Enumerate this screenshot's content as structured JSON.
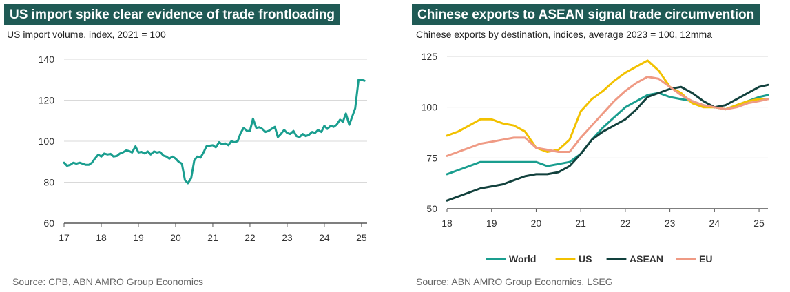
{
  "charts": [
    {
      "title": "US import spike clear evidence of trade frontloading",
      "subtitle": "US import volume, index, 2021 = 100",
      "source": "Source: CPB, ABN AMRO Group Economics"
    },
    {
      "title": "Chinese exports to ASEAN signal trade circumvention",
      "subtitle": "Chinese exports by destination, indices, average 2023 = 100, 12mma",
      "source": "Source: ABN AMRO Group Economics, LSEG"
    }
  ],
  "colors": {
    "title_bg": "#1f5a55",
    "world": "#1a9e8f",
    "us": "#f2c100",
    "asean": "#12413d",
    "eu": "#ef9a84",
    "axis": "#555555",
    "grid": "#d9d9d9"
  },
  "chart_data": [
    {
      "type": "line",
      "title": "US import spike clear evidence of trade frontloading",
      "xlabel": "",
      "ylabel": "US import volume, index, 2021 = 100",
      "xlim": [
        2017,
        2025.15
      ],
      "ylim": [
        60,
        140
      ],
      "yticks": [
        60,
        80,
        100,
        120,
        140
      ],
      "xticks": [
        2017,
        2018,
        2019,
        2020,
        2021,
        2022,
        2023,
        2024,
        2025
      ],
      "xtick_labels": [
        "17",
        "18",
        "19",
        "20",
        "21",
        "22",
        "23",
        "24",
        "25"
      ],
      "grid": true,
      "series": [
        {
          "name": "US import volume",
          "color": "#1a9e8f",
          "x": [
            2017.0,
            2017.08,
            2017.17,
            2017.25,
            2017.33,
            2017.42,
            2017.5,
            2017.58,
            2017.67,
            2017.75,
            2017.83,
            2017.92,
            2018.0,
            2018.08,
            2018.17,
            2018.25,
            2018.33,
            2018.42,
            2018.5,
            2018.58,
            2018.67,
            2018.75,
            2018.83,
            2018.92,
            2019.0,
            2019.08,
            2019.17,
            2019.25,
            2019.33,
            2019.42,
            2019.5,
            2019.58,
            2019.67,
            2019.75,
            2019.83,
            2019.92,
            2020.0,
            2020.08,
            2020.17,
            2020.25,
            2020.33,
            2020.42,
            2020.5,
            2020.58,
            2020.67,
            2020.75,
            2020.83,
            2020.92,
            2021.0,
            2021.08,
            2021.17,
            2021.25,
            2021.33,
            2021.42,
            2021.5,
            2021.58,
            2021.67,
            2021.75,
            2021.83,
            2021.92,
            2022.0,
            2022.08,
            2022.17,
            2022.25,
            2022.33,
            2022.42,
            2022.5,
            2022.58,
            2022.67,
            2022.75,
            2022.83,
            2022.92,
            2023.0,
            2023.08,
            2023.17,
            2023.25,
            2023.33,
            2023.42,
            2023.5,
            2023.58,
            2023.67,
            2023.75,
            2023.83,
            2023.92,
            2024.0,
            2024.08,
            2024.17,
            2024.25,
            2024.33,
            2024.42,
            2024.5,
            2024.58,
            2024.67,
            2024.75,
            2024.83,
            2024.92,
            2025.0,
            2025.08
          ],
          "y": [
            89.5,
            88.0,
            88.5,
            89.5,
            89.0,
            89.5,
            89.0,
            88.5,
            88.5,
            89.5,
            91.5,
            93.5,
            92.5,
            94.0,
            93.5,
            93.8,
            92.5,
            92.8,
            94.0,
            94.5,
            95.5,
            95.2,
            94.5,
            97.5,
            94.5,
            94.8,
            94.0,
            95.0,
            93.5,
            95.0,
            94.5,
            94.8,
            93.0,
            92.5,
            91.5,
            92.5,
            91.5,
            90.0,
            89.0,
            81.0,
            79.5,
            82.0,
            90.5,
            92.5,
            92.0,
            94.5,
            97.5,
            97.8,
            98.0,
            97.0,
            99.5,
            98.5,
            99.0,
            98.0,
            100.0,
            99.5,
            100.0,
            104.0,
            106.5,
            105.0,
            105.0,
            111.0,
            106.5,
            106.8,
            106.0,
            104.5,
            105.0,
            106.0,
            107.0,
            102.0,
            103.5,
            105.5,
            104.0,
            103.5,
            105.0,
            102.5,
            102.0,
            103.5,
            102.5,
            103.0,
            104.5,
            104.0,
            105.5,
            104.5,
            107.5,
            106.0,
            107.5,
            107.0,
            108.0,
            110.5,
            109.5,
            113.5,
            108.0,
            112.0,
            116.0,
            130.0,
            130.0,
            129.5
          ]
        }
      ]
    },
    {
      "type": "line",
      "title": "Chinese exports to ASEAN signal trade circumvention",
      "xlabel": "",
      "ylabel": "Chinese exports by destination, indices, average 2023 = 100, 12mma",
      "xlim": [
        2018,
        2025.2
      ],
      "ylim": [
        50,
        125
      ],
      "yticks": [
        50,
        75,
        100,
        125
      ],
      "xticks": [
        2018,
        2019,
        2020,
        2021,
        2022,
        2023,
        2024,
        2025
      ],
      "xtick_labels": [
        "18",
        "19",
        "20",
        "21",
        "22",
        "23",
        "24",
        "25"
      ],
      "grid": true,
      "legend": "bottom",
      "series": [
        {
          "name": "World",
          "color": "#1a9e8f",
          "x": [
            2018.0,
            2018.25,
            2018.5,
            2018.75,
            2019.0,
            2019.25,
            2019.5,
            2019.75,
            2020.0,
            2020.25,
            2020.5,
            2020.75,
            2021.0,
            2021.25,
            2021.5,
            2021.75,
            2022.0,
            2022.25,
            2022.5,
            2022.75,
            2023.0,
            2023.25,
            2023.5,
            2023.75,
            2024.0,
            2024.25,
            2024.5,
            2024.75,
            2025.0,
            2025.2
          ],
          "y": [
            67,
            69,
            71,
            73,
            73,
            73,
            73,
            73,
            73,
            71,
            72,
            73,
            77,
            84,
            90,
            95,
            100,
            103,
            106,
            107,
            105,
            104,
            103,
            101,
            100,
            99,
            101,
            103,
            105,
            106
          ]
        },
        {
          "name": "US",
          "color": "#f2c100",
          "x": [
            2018.0,
            2018.25,
            2018.5,
            2018.75,
            2019.0,
            2019.25,
            2019.5,
            2019.75,
            2020.0,
            2020.25,
            2020.5,
            2020.75,
            2021.0,
            2021.25,
            2021.5,
            2021.75,
            2022.0,
            2022.25,
            2022.5,
            2022.75,
            2023.0,
            2023.25,
            2023.5,
            2023.75,
            2024.0,
            2024.25,
            2024.5,
            2024.75,
            2025.0,
            2025.2
          ],
          "y": [
            86,
            88,
            91,
            94,
            94,
            92,
            91,
            88,
            80,
            78,
            79,
            84,
            98,
            104,
            108,
            113,
            117,
            120,
            123,
            118,
            110,
            107,
            102,
            100,
            100,
            99,
            101,
            103,
            104,
            104
          ]
        },
        {
          "name": "ASEAN",
          "color": "#12413d",
          "x": [
            2018.0,
            2018.25,
            2018.5,
            2018.75,
            2019.0,
            2019.25,
            2019.5,
            2019.75,
            2020.0,
            2020.25,
            2020.5,
            2020.75,
            2021.0,
            2021.25,
            2021.5,
            2021.75,
            2022.0,
            2022.25,
            2022.5,
            2022.75,
            2023.0,
            2023.25,
            2023.5,
            2023.75,
            2024.0,
            2024.25,
            2024.5,
            2024.75,
            2025.0,
            2025.2
          ],
          "y": [
            54,
            56,
            58,
            60,
            61,
            62,
            64,
            66,
            67,
            67,
            68,
            71,
            77,
            84,
            88,
            91,
            94,
            99,
            105,
            107,
            109,
            110,
            107,
            103,
            100,
            101,
            104,
            107,
            110,
            111
          ]
        },
        {
          "name": "EU",
          "color": "#ef9a84",
          "x": [
            2018.0,
            2018.25,
            2018.5,
            2018.75,
            2019.0,
            2019.25,
            2019.5,
            2019.75,
            2020.0,
            2020.25,
            2020.5,
            2020.75,
            2021.0,
            2021.25,
            2021.5,
            2021.75,
            2022.0,
            2022.25,
            2022.5,
            2022.75,
            2023.0,
            2023.25,
            2023.5,
            2023.75,
            2024.0,
            2024.25,
            2024.5,
            2024.75,
            2025.0,
            2025.2
          ],
          "y": [
            76,
            78,
            80,
            82,
            83,
            84,
            85,
            85,
            80,
            79,
            78,
            78,
            85,
            91,
            97,
            103,
            108,
            112,
            115,
            114,
            110,
            106,
            103,
            101,
            100,
            99,
            100,
            102,
            103,
            104
          ]
        }
      ]
    }
  ]
}
